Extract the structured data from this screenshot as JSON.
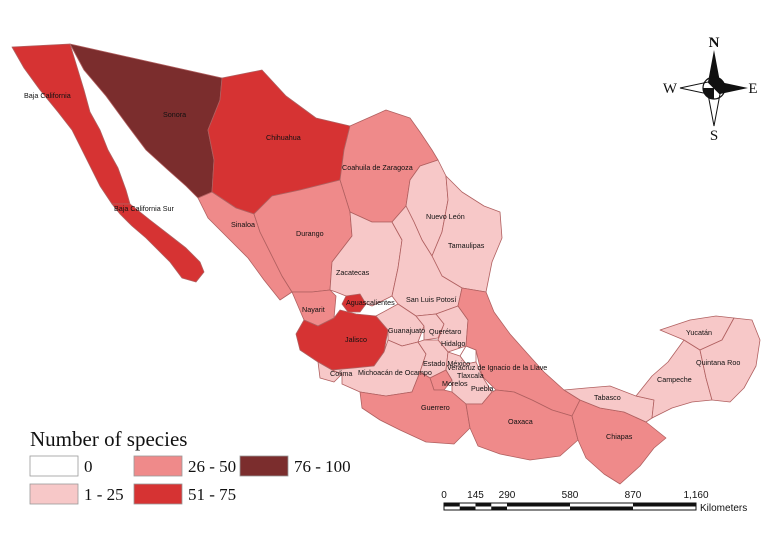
{
  "colors": {
    "c0": "#ffffff",
    "c1": "#f7c8c8",
    "c2": "#ef8a8a",
    "c3": "#d63333",
    "c4": "#7b2d2d"
  },
  "compass": {
    "north": "N",
    "south": "S",
    "east": "E",
    "west": "W"
  },
  "legend": {
    "title": "Number of species",
    "classes": [
      {
        "label": "0",
        "color_key": "c0"
      },
      {
        "label": "1 - 25",
        "color_key": "c1"
      },
      {
        "label": "26 - 50",
        "color_key": "c2"
      },
      {
        "label": "51 - 75",
        "color_key": "c3"
      },
      {
        "label": "76 - 100",
        "color_key": "c4"
      }
    ]
  },
  "scale_bar": {
    "ticks": [
      "0",
      "145",
      "290",
      "580",
      "870",
      "1,160"
    ],
    "unit": "Kilometers"
  },
  "states": [
    {
      "id": "baja-california",
      "name": "Baja California",
      "class": "c3"
    },
    {
      "id": "baja-california-sur",
      "name": "Baja California Sur",
      "class": "c3"
    },
    {
      "id": "sonora",
      "name": "Sonora",
      "class": "c4"
    },
    {
      "id": "chihuahua",
      "name": "Chihuahua",
      "class": "c3"
    },
    {
      "id": "coahuila",
      "name": "Coahuila de Zaragoza",
      "class": "c2"
    },
    {
      "id": "nuevo-leon",
      "name": "Nuevo León",
      "class": "c1"
    },
    {
      "id": "tamaulipas",
      "name": "Tamaulipas",
      "class": "c1"
    },
    {
      "id": "sinaloa",
      "name": "Sinaloa",
      "class": "c2"
    },
    {
      "id": "durango",
      "name": "Durango",
      "class": "c2"
    },
    {
      "id": "zacatecas",
      "name": "Zacatecas",
      "class": "c1"
    },
    {
      "id": "san-luis-potosi",
      "name": "San Luis Potosí",
      "class": "c1"
    },
    {
      "id": "nayarit",
      "name": "Nayarit",
      "class": "c2"
    },
    {
      "id": "aguascalientes",
      "name": "Aguascalientes",
      "class": "c3"
    },
    {
      "id": "jalisco",
      "name": "Jalisco",
      "class": "c3"
    },
    {
      "id": "guanajuato",
      "name": "Guanajuato",
      "class": "c1"
    },
    {
      "id": "queretaro",
      "name": "Querétaro",
      "class": "c1"
    },
    {
      "id": "hidalgo",
      "name": "Hidalgo",
      "class": "c1"
    },
    {
      "id": "colima",
      "name": "Colima",
      "class": "c1"
    },
    {
      "id": "michoacan",
      "name": "Michoacán de Ocampo",
      "class": "c1"
    },
    {
      "id": "estado-mexico",
      "name": "Estado México",
      "class": "c1"
    },
    {
      "id": "tlaxcala",
      "name": "Tlaxcala",
      "class": "c0"
    },
    {
      "id": "morelos",
      "name": "Morelos",
      "class": "c2"
    },
    {
      "id": "puebla",
      "name": "Puebla",
      "class": "c1"
    },
    {
      "id": "veracruz",
      "name": "Veracruz de Ignacio de la Llave",
      "class": "c2"
    },
    {
      "id": "guerrero",
      "name": "Guerrero",
      "class": "c2"
    },
    {
      "id": "oaxaca",
      "name": "Oaxaca",
      "class": "c2"
    },
    {
      "id": "chiapas",
      "name": "Chiapas",
      "class": "c2"
    },
    {
      "id": "tabasco",
      "name": "Tabasco",
      "class": "c1"
    },
    {
      "id": "campeche",
      "name": "Campeche",
      "class": "c1"
    },
    {
      "id": "yucatan",
      "name": "Yucatán",
      "class": "c1"
    },
    {
      "id": "quintana-roo",
      "name": "Quintana Roo",
      "class": "c1"
    }
  ]
}
